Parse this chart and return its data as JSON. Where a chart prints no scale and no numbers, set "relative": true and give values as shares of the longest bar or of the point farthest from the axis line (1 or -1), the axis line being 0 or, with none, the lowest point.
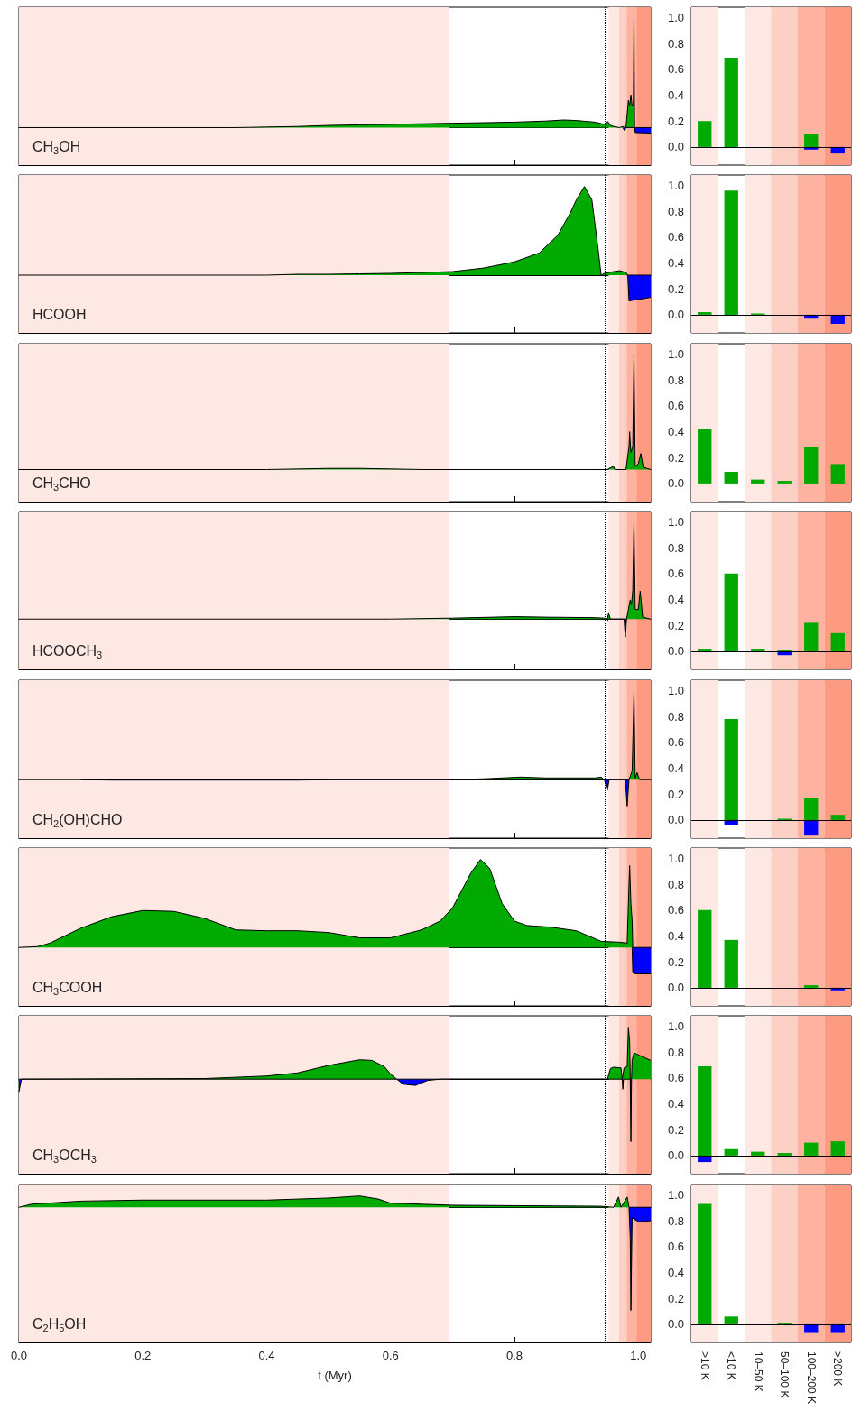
{
  "chart_data": [
    {
      "type": "area",
      "title": "CH$_{3}$OH",
      "relative": true,
      "xlim": [
        0,
        1.02
      ],
      "xticks": [
        0,
        0.2,
        0.4,
        0.6,
        0.8,
        1
      ],
      "tick_labels": false,
      "bands": [
        {
          "axis": "x",
          "from": 0,
          "to": 0.695,
          "color": "#fee8e4"
        },
        {
          "axis": "x",
          "from": 0.952,
          "to": 0.969,
          "color": "#fee8e4"
        },
        {
          "axis": "x",
          "from": 0.969,
          "to": 0.981,
          "color": "#fdd0c6"
        },
        {
          "axis": "x",
          "from": 0.981,
          "to": 0.997,
          "color": "#fdb3a0"
        },
        {
          "axis": "x",
          "from": 0.997,
          "to": 1.02,
          "color": "#fc9a82"
        }
      ],
      "ref_lines": [
        {
          "axis": "x",
          "value": 0.946,
          "color": "#000000",
          "line_style": "dotted"
        }
      ],
      "series": [
        {
          "color": "#00aa00",
          "x": [
            0,
            0.35,
            0.4,
            0.45,
            0.5,
            0.55,
            0.6,
            0.65,
            0.7,
            0.75,
            0.8,
            0.85,
            0.88,
            0.9,
            0.93,
            0.945,
            0.95,
            0.955,
            0.96,
            0.97,
            0.975,
            0.978,
            0.98,
            0.984,
            0.986,
            0.988,
            0.99,
            0.992,
            0.993,
            0.994,
            0.995,
            1.02
          ],
          "values": [
            0,
            0,
            0.005,
            0.01,
            0.02,
            0.025,
            0.03,
            0.035,
            0.04,
            0.045,
            0.05,
            0.06,
            0.07,
            0.065,
            0.05,
            0.03,
            0.06,
            0.02,
            0.01,
            0,
            0.01,
            0,
            0,
            0.25,
            0.2,
            0.3,
            0.2,
            0.2,
            1,
            0,
            0,
            0
          ]
        },
        {
          "color": "#0000ff",
          "x": [
            0.975,
            0.978,
            0.98,
            0.994,
            0.995,
            1.02
          ],
          "values": [
            0,
            -0.03,
            0,
            0,
            -0.045,
            -0.05
          ]
        }
      ]
    },
    {
      "type": "bar",
      "stacked": true,
      "categories": [
        ">10 K",
        "<10 K",
        "10–50 K",
        "50–100 K",
        "100–200 K",
        ">200 K"
      ],
      "ylim": [
        -0.14,
        1.08
      ],
      "yticks": [
        {
          "value": 0,
          "label": "0.0"
        },
        {
          "value": 0.2,
          "label": "0.2"
        },
        {
          "value": 0.4,
          "label": "0.4"
        },
        {
          "value": 0.6,
          "label": "0.6"
        },
        {
          "value": 0.8,
          "label": "0.8"
        },
        {
          "value": 1,
          "label": "1.0"
        }
      ],
      "tick_labels": "y",
      "bands": [
        {
          "axis": "x",
          "from": ">10 K",
          "to": ">10 K",
          "color": "#fee8e4"
        },
        {
          "axis": "x",
          "from": "10–50 K",
          "to": "10–50 K",
          "color": "#fee8e4"
        },
        {
          "axis": "x",
          "from": "50–100 K",
          "to": "50–100 K",
          "color": "#fdd0c6"
        },
        {
          "axis": "x",
          "from": "100–200 K",
          "to": "100–200 K",
          "color": "#fdb3a0"
        },
        {
          "axis": "x",
          "from": ">200 K",
          "to": ">200 K",
          "color": "#fc9a82"
        }
      ],
      "ref_lines": [
        {
          "axis": "y",
          "value": 0,
          "color": "#000000"
        }
      ],
      "series": [
        {
          "color": "#00aa00",
          "values": [
            0.2,
            0.69,
            0,
            0,
            0.1,
            0
          ]
        },
        {
          "color": "#0000ff",
          "values": [
            0,
            0,
            0,
            0,
            -0.02,
            -0.05
          ]
        }
      ]
    },
    {
      "type": "area",
      "title": "HCOOH",
      "relative": true,
      "xlim": [
        0,
        1.02
      ],
      "xticks": [
        0,
        0.2,
        0.4,
        0.6,
        0.8,
        1
      ],
      "tick_labels": false,
      "bands": [
        {
          "axis": "x",
          "from": 0,
          "to": 0.695,
          "color": "#fee8e4"
        },
        {
          "axis": "x",
          "from": 0.952,
          "to": 0.969,
          "color": "#fee8e4"
        },
        {
          "axis": "x",
          "from": 0.969,
          "to": 0.981,
          "color": "#fdd0c6"
        },
        {
          "axis": "x",
          "from": 0.981,
          "to": 0.997,
          "color": "#fdb3a0"
        },
        {
          "axis": "x",
          "from": 0.997,
          "to": 1.02,
          "color": "#fc9a82"
        }
      ],
      "ref_lines": [
        {
          "axis": "x",
          "value": 0.946,
          "color": "#000000",
          "line_style": "dotted"
        }
      ],
      "series": [
        {
          "color": "#00aa00",
          "x": [
            0,
            0.4,
            0.45,
            0.5,
            0.55,
            0.6,
            0.65,
            0.7,
            0.75,
            0.8,
            0.84,
            0.87,
            0.89,
            0.9,
            0.913,
            0.925,
            0.935,
            0.94,
            0.945,
            0.96,
            0.97,
            0.98,
            0.983,
            1.02
          ],
          "values": [
            0,
            0,
            0.01,
            0.01,
            0.015,
            0.02,
            0.03,
            0.04,
            0.08,
            0.15,
            0.25,
            0.45,
            0.7,
            0.85,
            1,
            0.85,
            0.3,
            0,
            0.02,
            0.04,
            0.05,
            0.03,
            0,
            0
          ]
        },
        {
          "color": "#0000ff",
          "x": [
            0.983,
            0.985,
            0.995,
            1.02
          ],
          "values": [
            0,
            -0.29,
            -0.28,
            -0.25
          ]
        }
      ]
    },
    {
      "type": "bar",
      "stacked": true,
      "categories": [
        ">10 K",
        "<10 K",
        "10–50 K",
        "50–100 K",
        "100–200 K",
        ">200 K"
      ],
      "ylim": [
        -0.14,
        1.08
      ],
      "yticks": [
        {
          "value": 0,
          "label": "0.0"
        },
        {
          "value": 0.2,
          "label": "0.2"
        },
        {
          "value": 0.4,
          "label": "0.4"
        },
        {
          "value": 0.6,
          "label": "0.6"
        },
        {
          "value": 0.8,
          "label": "0.8"
        },
        {
          "value": 1,
          "label": "1.0"
        }
      ],
      "tick_labels": "y",
      "bands": [
        {
          "axis": "x",
          "from": ">10 K",
          "to": ">10 K",
          "color": "#fee8e4"
        },
        {
          "axis": "x",
          "from": "10–50 K",
          "to": "10–50 K",
          "color": "#fee8e4"
        },
        {
          "axis": "x",
          "from": "50–100 K",
          "to": "50–100 K",
          "color": "#fdd0c6"
        },
        {
          "axis": "x",
          "from": "100–200 K",
          "to": "100–200 K",
          "color": "#fdb3a0"
        },
        {
          "axis": "x",
          "from": ">200 K",
          "to": ">200 K",
          "color": "#fc9a82"
        }
      ],
      "ref_lines": [
        {
          "axis": "y",
          "value": 0,
          "color": "#000000"
        }
      ],
      "series": [
        {
          "color": "#00aa00",
          "values": [
            0.02,
            0.96,
            0.01,
            0,
            0,
            0
          ]
        },
        {
          "color": "#0000ff",
          "values": [
            0,
            0,
            0,
            0,
            -0.03,
            -0.07
          ]
        }
      ]
    },
    {
      "type": "area",
      "title": "CH$_{3}$CHO",
      "relative": true,
      "xlim": [
        0,
        1.02
      ],
      "xticks": [
        0,
        0.2,
        0.4,
        0.6,
        0.8,
        1
      ],
      "tick_labels": false,
      "bands": [
        {
          "axis": "x",
          "from": 0,
          "to": 0.695,
          "color": "#fee8e4"
        },
        {
          "axis": "x",
          "from": 0.952,
          "to": 0.969,
          "color": "#fee8e4"
        },
        {
          "axis": "x",
          "from": 0.969,
          "to": 0.981,
          "color": "#fdd0c6"
        },
        {
          "axis": "x",
          "from": 0.981,
          "to": 0.997,
          "color": "#fdb3a0"
        },
        {
          "axis": "x",
          "from": 0.997,
          "to": 1.02,
          "color": "#fc9a82"
        }
      ],
      "ref_lines": [
        {
          "axis": "x",
          "value": 0.946,
          "color": "#000000",
          "line_style": "dotted"
        }
      ],
      "series": [
        {
          "color": "#00aa00",
          "x": [
            0,
            0.4,
            0.5,
            0.55,
            0.6,
            0.65,
            0.95,
            0.96,
            0.962,
            0.98,
            0.985,
            0.986,
            0.988,
            0.991,
            0.993,
            0.995,
            1.0,
            1.004,
            1.008,
            1.02
          ],
          "values": [
            0,
            0,
            0.01,
            0.01,
            0.005,
            0,
            0,
            0.03,
            0,
            0,
            0.2,
            0.33,
            0.15,
            0.2,
            1,
            0.03,
            0.05,
            0.14,
            0.02,
            0
          ]
        }
      ]
    },
    {
      "type": "bar",
      "stacked": true,
      "categories": [
        ">10 K",
        "<10 K",
        "10–50 K",
        "50–100 K",
        "100–200 K",
        ">200 K"
      ],
      "ylim": [
        -0.14,
        1.08
      ],
      "yticks": [
        {
          "value": 0,
          "label": "0.0"
        },
        {
          "value": 0.2,
          "label": "0.2"
        },
        {
          "value": 0.4,
          "label": "0.4"
        },
        {
          "value": 0.6,
          "label": "0.6"
        },
        {
          "value": 0.8,
          "label": "0.8"
        },
        {
          "value": 1,
          "label": "1.0"
        }
      ],
      "tick_labels": "y",
      "bands": [
        {
          "axis": "x",
          "from": ">10 K",
          "to": ">10 K",
          "color": "#fee8e4"
        },
        {
          "axis": "x",
          "from": "10–50 K",
          "to": "10–50 K",
          "color": "#fee8e4"
        },
        {
          "axis": "x",
          "from": "50–100 K",
          "to": "50–100 K",
          "color": "#fdd0c6"
        },
        {
          "axis": "x",
          "from": "100–200 K",
          "to": "100–200 K",
          "color": "#fdb3a0"
        },
        {
          "axis": "x",
          "from": ">200 K",
          "to": ">200 K",
          "color": "#fc9a82"
        }
      ],
      "ref_lines": [
        {
          "axis": "y",
          "value": 0,
          "color": "#000000"
        }
      ],
      "series": [
        {
          "color": "#00aa00",
          "values": [
            0.42,
            0.09,
            0.03,
            0.02,
            0.28,
            0.15
          ]
        },
        {
          "color": "#0000ff",
          "values": [
            0,
            0,
            0,
            0,
            0,
            0
          ]
        }
      ]
    },
    {
      "type": "area",
      "title": "HCOOCH$_{3}$",
      "relative": true,
      "xlim": [
        0,
        1.02
      ],
      "xticks": [
        0,
        0.2,
        0.4,
        0.6,
        0.8,
        1
      ],
      "tick_labels": false,
      "bands": [
        {
          "axis": "x",
          "from": 0,
          "to": 0.695,
          "color": "#fee8e4"
        },
        {
          "axis": "x",
          "from": 0.952,
          "to": 0.969,
          "color": "#fee8e4"
        },
        {
          "axis": "x",
          "from": 0.969,
          "to": 0.981,
          "color": "#fdd0c6"
        },
        {
          "axis": "x",
          "from": 0.981,
          "to": 0.997,
          "color": "#fdb3a0"
        },
        {
          "axis": "x",
          "from": 0.997,
          "to": 1.02,
          "color": "#fc9a82"
        }
      ],
      "ref_lines": [
        {
          "axis": "x",
          "value": 0.946,
          "color": "#000000",
          "line_style": "dotted"
        }
      ],
      "series": [
        {
          "color": "#00aa00",
          "x": [
            0,
            0.6,
            0.7,
            0.8,
            0.85,
            0.93,
            0.945,
            0.95,
            0.952,
            0.955,
            0.975,
            0.981,
            0.984,
            0.987,
            0.989,
            0.991,
            0.993,
            0.995,
            1.0,
            1.003,
            1.007,
            1.02
          ],
          "values": [
            0,
            0,
            0.01,
            0.025,
            0.02,
            0.015,
            0.01,
            0,
            0.06,
            0,
            0,
            0,
            0.1,
            0.2,
            0.15,
            0.3,
            1,
            0.1,
            0.1,
            0.29,
            0.02,
            0
          ]
        },
        {
          "color": "#0000ff",
          "x": [
            0.948,
            0.95,
            0.951,
            0.977,
            0.979,
            0.981
          ],
          "values": [
            0,
            -0.02,
            0,
            0,
            -0.19,
            0
          ]
        }
      ]
    },
    {
      "type": "bar",
      "stacked": true,
      "categories": [
        ">10 K",
        "<10 K",
        "10–50 K",
        "50–100 K",
        "100–200 K",
        ">200 K"
      ],
      "ylim": [
        -0.14,
        1.08
      ],
      "yticks": [
        {
          "value": 0,
          "label": "0.0"
        },
        {
          "value": 0.2,
          "label": "0.2"
        },
        {
          "value": 0.4,
          "label": "0.4"
        },
        {
          "value": 0.6,
          "label": "0.6"
        },
        {
          "value": 0.8,
          "label": "0.8"
        },
        {
          "value": 1,
          "label": "1.0"
        }
      ],
      "tick_labels": "y",
      "bands": [
        {
          "axis": "x",
          "from": ">10 K",
          "to": ">10 K",
          "color": "#fee8e4"
        },
        {
          "axis": "x",
          "from": "10–50 K",
          "to": "10–50 K",
          "color": "#fee8e4"
        },
        {
          "axis": "x",
          "from": "50–100 K",
          "to": "50–100 K",
          "color": "#fdd0c6"
        },
        {
          "axis": "x",
          "from": "100–200 K",
          "to": "100–200 K",
          "color": "#fdb3a0"
        },
        {
          "axis": "x",
          "from": ">200 K",
          "to": ">200 K",
          "color": "#fc9a82"
        }
      ],
      "ref_lines": [
        {
          "axis": "y",
          "value": 0,
          "color": "#000000"
        }
      ],
      "series": [
        {
          "color": "#00aa00",
          "values": [
            0.02,
            0.6,
            0.02,
            0.01,
            0.22,
            0.14
          ]
        },
        {
          "color": "#0000ff",
          "values": [
            0,
            0,
            0,
            -0.03,
            0,
            0
          ]
        }
      ]
    },
    {
      "type": "area",
      "title": "CH$_{2}$(OH)CHO",
      "relative": true,
      "xlim": [
        0,
        1.02
      ],
      "xticks": [
        0,
        0.2,
        0.4,
        0.6,
        0.8,
        1
      ],
      "tick_labels": false,
      "bands": [
        {
          "axis": "x",
          "from": 0,
          "to": 0.695,
          "color": "#fee8e4"
        },
        {
          "axis": "x",
          "from": 0.952,
          "to": 0.969,
          "color": "#fee8e4"
        },
        {
          "axis": "x",
          "from": 0.969,
          "to": 0.981,
          "color": "#fdd0c6"
        },
        {
          "axis": "x",
          "from": 0.981,
          "to": 0.997,
          "color": "#fdb3a0"
        },
        {
          "axis": "x",
          "from": 0.997,
          "to": 1.02,
          "color": "#fc9a82"
        }
      ],
      "ref_lines": [
        {
          "axis": "x",
          "value": 0.946,
          "color": "#000000",
          "line_style": "dotted"
        }
      ],
      "series": [
        {
          "color": "#00aa00",
          "x": [
            0,
            0.5,
            0.7,
            0.75,
            0.81,
            0.85,
            0.93,
            0.94,
            0.945,
            0.953,
            0.975,
            0.985,
            0.99,
            0.993,
            0.995,
            0.998,
            1.002,
            1.02
          ],
          "values": [
            0,
            0,
            0,
            0.01,
            0.03,
            0.02,
            0.02,
            0.03,
            0,
            0,
            0,
            0,
            0.1,
            1,
            0.02,
            0.08,
            0,
            0
          ]
        },
        {
          "color": "#0000ff",
          "x": [
            0.1,
            0.15,
            0.45,
            0.5,
            0.945,
            0.95,
            0.953,
            0.979,
            0.982,
            0.985
          ],
          "values": [
            0,
            -0.005,
            -0.005,
            0,
            0,
            -0.12,
            0,
            0,
            -0.3,
            0
          ]
        }
      ]
    },
    {
      "type": "bar",
      "stacked": true,
      "categories": [
        ">10 K",
        "<10 K",
        "10–50 K",
        "50–100 K",
        "100–200 K",
        ">200 K"
      ],
      "ylim": [
        -0.14,
        1.08
      ],
      "yticks": [
        {
          "value": 0,
          "label": "0.0"
        },
        {
          "value": 0.2,
          "label": "0.2"
        },
        {
          "value": 0.4,
          "label": "0.4"
        },
        {
          "value": 0.6,
          "label": "0.6"
        },
        {
          "value": 0.8,
          "label": "0.8"
        },
        {
          "value": 1,
          "label": "1.0"
        }
      ],
      "tick_labels": "y",
      "bands": [
        {
          "axis": "x",
          "from": ">10 K",
          "to": ">10 K",
          "color": "#fee8e4"
        },
        {
          "axis": "x",
          "from": "10–50 K",
          "to": "10–50 K",
          "color": "#fee8e4"
        },
        {
          "axis": "x",
          "from": "50–100 K",
          "to": "50–100 K",
          "color": "#fdd0c6"
        },
        {
          "axis": "x",
          "from": "100–200 K",
          "to": "100–200 K",
          "color": "#fdb3a0"
        },
        {
          "axis": "x",
          "from": ">200 K",
          "to": ">200 K",
          "color": "#fc9a82"
        }
      ],
      "ref_lines": [
        {
          "axis": "y",
          "value": 0,
          "color": "#000000"
        }
      ],
      "series": [
        {
          "color": "#00aa00",
          "values": [
            0,
            0.78,
            0,
            0.01,
            0.17,
            0.04
          ]
        },
        {
          "color": "#0000ff",
          "values": [
            0,
            -0.04,
            0,
            0,
            -0.12,
            0
          ]
        }
      ]
    },
    {
      "type": "area",
      "title": "CH$_{3}$COOH",
      "relative": true,
      "xlim": [
        0,
        1.02
      ],
      "xticks": [
        0,
        0.2,
        0.4,
        0.6,
        0.8,
        1
      ],
      "tick_labels": false,
      "bands": [
        {
          "axis": "x",
          "from": 0,
          "to": 0.695,
          "color": "#fee8e4"
        },
        {
          "axis": "x",
          "from": 0.952,
          "to": 0.969,
          "color": "#fee8e4"
        },
        {
          "axis": "x",
          "from": 0.969,
          "to": 0.981,
          "color": "#fdd0c6"
        },
        {
          "axis": "x",
          "from": 0.981,
          "to": 0.997,
          "color": "#fdb3a0"
        },
        {
          "axis": "x",
          "from": 0.997,
          "to": 1.02,
          "color": "#fc9a82"
        }
      ],
      "ref_lines": [
        {
          "axis": "x",
          "value": 0.946,
          "color": "#000000",
          "line_style": "dotted"
        }
      ],
      "series": [
        {
          "color": "#00aa00",
          "x": [
            0,
            0.03,
            0.05,
            0.1,
            0.15,
            0.2,
            0.25,
            0.3,
            0.35,
            0.4,
            0.45,
            0.5,
            0.55,
            0.6,
            0.65,
            0.68,
            0.7,
            0.73,
            0.745,
            0.76,
            0.78,
            0.8,
            0.82,
            0.86,
            0.9,
            0.93,
            0.94,
            0.97,
            0.982,
            0.984,
            0.986,
            0.988,
            0.99,
            0.991,
            1.02
          ],
          "values": [
            0,
            0.01,
            0.05,
            0.22,
            0.35,
            0.42,
            0.41,
            0.33,
            0.2,
            0.19,
            0.19,
            0.17,
            0.11,
            0.11,
            0.2,
            0.3,
            0.45,
            0.85,
            1,
            0.9,
            0.5,
            0.3,
            0.25,
            0.23,
            0.19,
            0.1,
            0.07,
            0.06,
            0.05,
            0.5,
            0.93,
            0.5,
            0.3,
            0,
            0
          ]
        },
        {
          "color": "#0000ff",
          "x": [
            0.99,
            0.991,
            0.995,
            1.02
          ],
          "values": [
            0,
            -0.28,
            -0.3,
            -0.3
          ]
        }
      ]
    },
    {
      "type": "bar",
      "stacked": true,
      "categories": [
        ">10 K",
        "<10 K",
        "10–50 K",
        "50–100 K",
        "100–200 K",
        ">200 K"
      ],
      "ylim": [
        -0.14,
        1.08
      ],
      "yticks": [
        {
          "value": 0,
          "label": "0.0"
        },
        {
          "value": 0.2,
          "label": "0.2"
        },
        {
          "value": 0.4,
          "label": "0.4"
        },
        {
          "value": 0.6,
          "label": "0.6"
        },
        {
          "value": 0.8,
          "label": "0.8"
        },
        {
          "value": 1,
          "label": "1.0"
        }
      ],
      "tick_labels": "y",
      "bands": [
        {
          "axis": "x",
          "from": ">10 K",
          "to": ">10 K",
          "color": "#fee8e4"
        },
        {
          "axis": "x",
          "from": "10–50 K",
          "to": "10–50 K",
          "color": "#fee8e4"
        },
        {
          "axis": "x",
          "from": "50–100 K",
          "to": "50–100 K",
          "color": "#fdd0c6"
        },
        {
          "axis": "x",
          "from": "100–200 K",
          "to": "100–200 K",
          "color": "#fdb3a0"
        },
        {
          "axis": "x",
          "from": ">200 K",
          "to": ">200 K",
          "color": "#fc9a82"
        }
      ],
      "ref_lines": [
        {
          "axis": "y",
          "value": 0,
          "color": "#000000"
        }
      ],
      "series": [
        {
          "color": "#00aa00",
          "values": [
            0.6,
            0.37,
            0,
            0,
            0.02,
            0
          ]
        },
        {
          "color": "#0000ff",
          "values": [
            0,
            0,
            0,
            0,
            0,
            -0.02
          ]
        }
      ]
    },
    {
      "type": "area",
      "title": "CH$_{3}$OCH$_{3}$",
      "relative": true,
      "xlim": [
        0,
        1.02
      ],
      "xticks": [
        0,
        0.2,
        0.4,
        0.6,
        0.8,
        1
      ],
      "tick_labels": false,
      "bands": [
        {
          "axis": "x",
          "from": 0,
          "to": 0.695,
          "color": "#fee8e4"
        },
        {
          "axis": "x",
          "from": 0.952,
          "to": 0.969,
          "color": "#fee8e4"
        },
        {
          "axis": "x",
          "from": 0.969,
          "to": 0.981,
          "color": "#fdd0c6"
        },
        {
          "axis": "x",
          "from": 0.981,
          "to": 0.997,
          "color": "#fdb3a0"
        },
        {
          "axis": "x",
          "from": 0.997,
          "to": 1.02,
          "color": "#fc9a82"
        }
      ],
      "ref_lines": [
        {
          "axis": "x",
          "value": 0.946,
          "color": "#000000",
          "line_style": "dotted"
        }
      ],
      "series": [
        {
          "color": "#00aa00",
          "x": [
            0,
            0.3,
            0.4,
            0.45,
            0.5,
            0.55,
            0.57,
            0.59,
            0.6,
            0.61,
            0.68,
            0.95,
            0.955,
            0.96,
            0.972,
            0.974,
            0.977,
            0.982,
            0.984,
            0.986,
            0.987,
            0.989,
            0.99,
            0.993,
            1.02
          ],
          "values": [
            0,
            0.01,
            0.05,
            0.1,
            0.22,
            0.31,
            0.3,
            0.2,
            0.08,
            0,
            0,
            0,
            0.17,
            0.19,
            0.18,
            0,
            0.18,
            0.2,
            0.83,
            0.6,
            0,
            0,
            0.3,
            0.42,
            0.3
          ]
        },
        {
          "color": "#0000ff",
          "x": [
            0,
            0.004,
            0.61,
            0.62,
            0.64,
            0.66,
            0.68,
            0.974,
            0.975,
            0.976,
            0.987,
            0.988,
            0.989
          ],
          "values": [
            -0.2,
            0,
            0,
            -0.08,
            -0.1,
            -0.02,
            0,
            0,
            -0.16,
            0,
            0,
            -1,
            0
          ]
        }
      ]
    },
    {
      "type": "bar",
      "stacked": true,
      "categories": [
        ">10 K",
        "<10 K",
        "10–50 K",
        "50–100 K",
        "100–200 K",
        ">200 K"
      ],
      "ylim": [
        -0.14,
        1.08
      ],
      "yticks": [
        {
          "value": 0,
          "label": "0.0"
        },
        {
          "value": 0.2,
          "label": "0.2"
        },
        {
          "value": 0.4,
          "label": "0.4"
        },
        {
          "value": 0.6,
          "label": "0.6"
        },
        {
          "value": 0.8,
          "label": "0.8"
        },
        {
          "value": 1,
          "label": "1.0"
        }
      ],
      "tick_labels": "y",
      "bands": [
        {
          "axis": "x",
          "from": ">10 K",
          "to": ">10 K",
          "color": "#fee8e4"
        },
        {
          "axis": "x",
          "from": "10–50 K",
          "to": "10–50 K",
          "color": "#fee8e4"
        },
        {
          "axis": "x",
          "from": "50–100 K",
          "to": "50–100 K",
          "color": "#fdd0c6"
        },
        {
          "axis": "x",
          "from": "100–200 K",
          "to": "100–200 K",
          "color": "#fdb3a0"
        },
        {
          "axis": "x",
          "from": ">200 K",
          "to": ">200 K",
          "color": "#fc9a82"
        }
      ],
      "ref_lines": [
        {
          "axis": "y",
          "value": 0,
          "color": "#000000"
        }
      ],
      "series": [
        {
          "color": "#00aa00",
          "values": [
            0.69,
            0.05,
            0.03,
            0.02,
            0.1,
            0.11
          ]
        },
        {
          "color": "#0000ff",
          "values": [
            -0.05,
            0,
            0,
            0,
            0,
            0
          ]
        }
      ]
    },
    {
      "type": "area",
      "title": "C$_{2}$H$_{5}$OH",
      "xlabel": "t (Myr)",
      "relative": true,
      "xlim": [
        0,
        1.02
      ],
      "xticks": [
        {
          "value": 0,
          "label": "0.0"
        },
        {
          "value": 0.2,
          "label": "0.2"
        },
        {
          "value": 0.4,
          "label": "0.4"
        },
        {
          "value": 0.6,
          "label": "0.6"
        },
        {
          "value": 0.8,
          "label": "0.8"
        },
        {
          "value": 1,
          "label": "1.0"
        }
      ],
      "tick_labels": "x",
      "bands": [
        {
          "axis": "x",
          "from": 0,
          "to": 0.695,
          "color": "#fee8e4"
        },
        {
          "axis": "x",
          "from": 0.952,
          "to": 0.969,
          "color": "#fee8e4"
        },
        {
          "axis": "x",
          "from": 0.969,
          "to": 0.981,
          "color": "#fdd0c6"
        },
        {
          "axis": "x",
          "from": 0.981,
          "to": 0.997,
          "color": "#fdb3a0"
        },
        {
          "axis": "x",
          "from": 0.997,
          "to": 1.02,
          "color": "#fc9a82"
        }
      ],
      "ref_lines": [
        {
          "axis": "x",
          "value": 0.946,
          "color": "#000000",
          "line_style": "dotted"
        }
      ],
      "series": [
        {
          "color": "#00aa00",
          "x": [
            0,
            0.02,
            0.1,
            0.2,
            0.3,
            0.4,
            0.5,
            0.55,
            0.58,
            0.6,
            0.65,
            0.7,
            0.94,
            0.96,
            0.968,
            0.972,
            0.982,
            0.985,
            1.02
          ],
          "values": [
            0,
            0.03,
            0.06,
            0.07,
            0.07,
            0.07,
            0.09,
            0.11,
            0.08,
            0.04,
            0.03,
            0.02,
            0.01,
            0,
            0.1,
            0,
            0.1,
            0,
            0
          ]
        },
        {
          "color": "#0000ff",
          "x": [
            0.985,
            0.987,
            0.988,
            0.99,
            1.0,
            1.02
          ],
          "values": [
            0,
            -0.3,
            -1,
            -0.1,
            -0.14,
            -0.13
          ]
        }
      ]
    },
    {
      "type": "bar",
      "stacked": true,
      "categories": [
        ">10 K",
        "<10 K",
        "10–50 K",
        "50–100 K",
        "100–200 K",
        ">200 K"
      ],
      "ylim": [
        -0.14,
        1.08
      ],
      "yticks": [
        {
          "value": 0,
          "label": "0.0"
        },
        {
          "value": 0.2,
          "label": "0.2"
        },
        {
          "value": 0.4,
          "label": "0.4"
        },
        {
          "value": 0.6,
          "label": "0.6"
        },
        {
          "value": 0.8,
          "label": "0.8"
        },
        {
          "value": 1,
          "label": "1.0"
        }
      ],
      "bands": [
        {
          "axis": "x",
          "from": ">10 K",
          "to": ">10 K",
          "color": "#fee8e4"
        },
        {
          "axis": "x",
          "from": "10–50 K",
          "to": "10–50 K",
          "color": "#fee8e4"
        },
        {
          "axis": "x",
          "from": "50–100 K",
          "to": "50–100 K",
          "color": "#fdd0c6"
        },
        {
          "axis": "x",
          "from": "100–200 K",
          "to": "100–200 K",
          "color": "#fdb3a0"
        },
        {
          "axis": "x",
          "from": ">200 K",
          "to": ">200 K",
          "color": "#fc9a82"
        }
      ],
      "ref_lines": [
        {
          "axis": "y",
          "value": 0,
          "color": "#000000"
        }
      ],
      "series": [
        {
          "color": "#00aa00",
          "values": [
            0.93,
            0.06,
            0,
            0.01,
            0,
            0
          ]
        },
        {
          "color": "#0000ff",
          "values": [
            0,
            0,
            0,
            0,
            -0.06,
            -0.06
          ]
        }
      ]
    }
  ]
}
